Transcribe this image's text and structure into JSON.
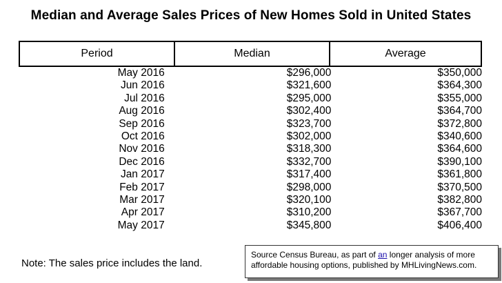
{
  "title": "Median and Average Sales Prices of New Homes Sold in United States",
  "table": {
    "headers": {
      "period": "Period",
      "median": "Median",
      "average": "Average"
    },
    "rows": [
      {
        "period": "May 2016",
        "median": "$296,000",
        "average": "$350,000"
      },
      {
        "period": "Jun 2016",
        "median": "$321,600",
        "average": "$364,300"
      },
      {
        "period": "Jul 2016",
        "median": "$295,000",
        "average": "$355,000"
      },
      {
        "period": "Aug 2016",
        "median": "$302,400",
        "average": "$364,700"
      },
      {
        "period": "Sep 2016",
        "median": "$323,700",
        "average": "$372,800"
      },
      {
        "period": "Oct 2016",
        "median": "$302,000",
        "average": "$340,600"
      },
      {
        "period": "Nov 2016",
        "median": "$318,300",
        "average": "$364,600"
      },
      {
        "period": "Dec 2016",
        "median": "$332,700",
        "average": "$390,100"
      },
      {
        "period": "Jan 2017",
        "median": "$317,400",
        "average": "$361,800"
      },
      {
        "period": "Feb 2017",
        "median": "$298,000",
        "average": "$370,500"
      },
      {
        "period": "Mar 2017",
        "median": "$320,100",
        "average": "$382,800"
      },
      {
        "period": "Apr 2017",
        "median": "$310,200",
        "average": "$367,700"
      },
      {
        "period": "May 2017",
        "median": "$345,800",
        "average": "$406,400"
      }
    ]
  },
  "note": "Note: The sales price includes the land.",
  "source": {
    "text_before": "Source Census Bureau, as part of ",
    "link_text": "an",
    "text_after_line1": " longer analysis of more",
    "line2": "affordable housing options, published by MHLivingNews.com."
  }
}
